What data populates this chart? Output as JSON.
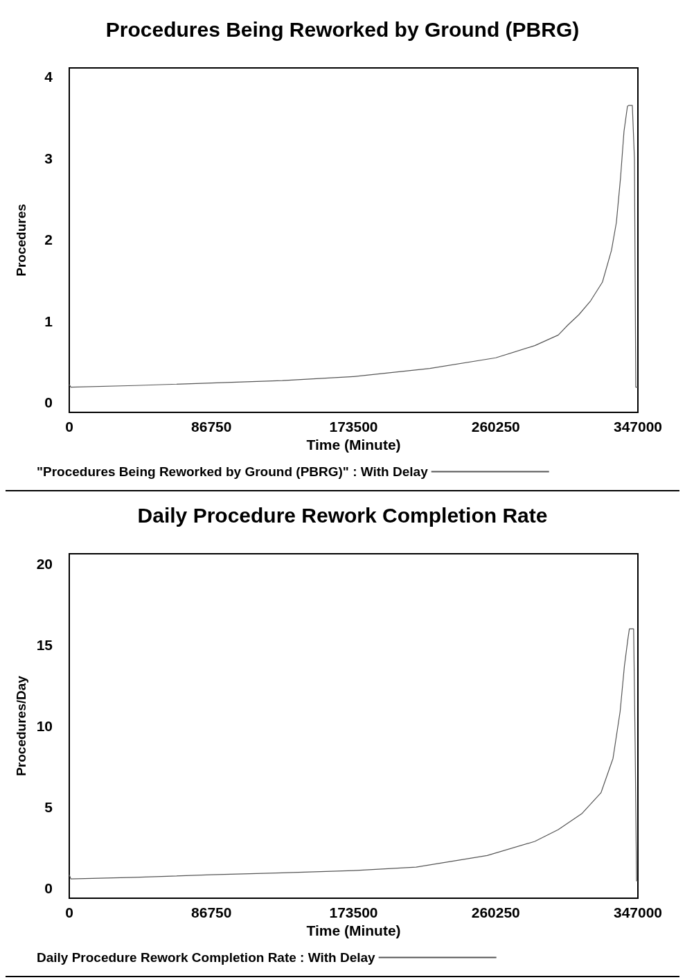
{
  "chart_data": [
    {
      "type": "line",
      "title": "Procedures Being Reworked by Ground (PBRG)",
      "xlabel": "Time (Minute)",
      "ylabel": "Procedures",
      "xlim": [
        0,
        347000
      ],
      "xticks": [
        0,
        86750,
        173500,
        260250,
        347000
      ],
      "ylim": [
        -0.12,
        4.11
      ],
      "yticks": [
        0,
        1,
        2,
        3,
        4
      ],
      "grid": false,
      "legend": "bottom",
      "marker": "none",
      "line_style": "solid",
      "series": [
        {
          "name": "\"Procedures Being Reworked by Ground (PBRG)\" : With Delay",
          "color": "#555555",
          "x": [
            0,
            1000,
            40000,
            86750,
            130000,
            173500,
            220000,
            260250,
            284100,
            298420,
            304150,
            311000,
            318150,
            325360,
            330880,
            333850,
            336400,
            338510,
            340630,
            341480,
            343600,
            344880,
            345720,
            347000
          ],
          "values": [
            0.22,
            0.19,
            0.21,
            0.24,
            0.27,
            0.32,
            0.42,
            0.55,
            0.7,
            0.83,
            0.95,
            1.08,
            1.25,
            1.48,
            1.87,
            2.21,
            2.76,
            3.33,
            3.64,
            3.65,
            3.65,
            3.0,
            0.19,
            0.19
          ]
        }
      ]
    },
    {
      "type": "line",
      "title": "Daily Procedure Rework Completion Rate",
      "xlabel": "Time (Minute)",
      "ylabel": "Procedures/Day",
      "xlim": [
        0,
        347000
      ],
      "xticks": [
        0,
        86750,
        173500,
        260250,
        347000
      ],
      "ylim": [
        -0.64,
        20.64
      ],
      "yticks": [
        0,
        5,
        10,
        15,
        20
      ],
      "grid": false,
      "legend": "bottom",
      "marker": "none",
      "line_style": "solid",
      "series": [
        {
          "name": "Daily Procedure Rework Completion Rate : With Delay",
          "color": "#555555",
          "x": [
            0,
            1000,
            40000,
            86750,
            130000,
            173500,
            211670,
            255045,
            284100,
            298420,
            312740,
            324450,
            331820,
            336160,
            338760,
            340930,
            341800,
            344400,
            345300,
            346170,
            347000
          ],
          "values": [
            0.8,
            0.55,
            0.65,
            0.81,
            0.93,
            1.07,
            1.28,
            2.0,
            2.87,
            3.6,
            4.58,
            5.87,
            8.0,
            10.9,
            13.7,
            15.4,
            16.0,
            16.0,
            9.0,
            0.43,
            0.43
          ]
        }
      ]
    }
  ]
}
